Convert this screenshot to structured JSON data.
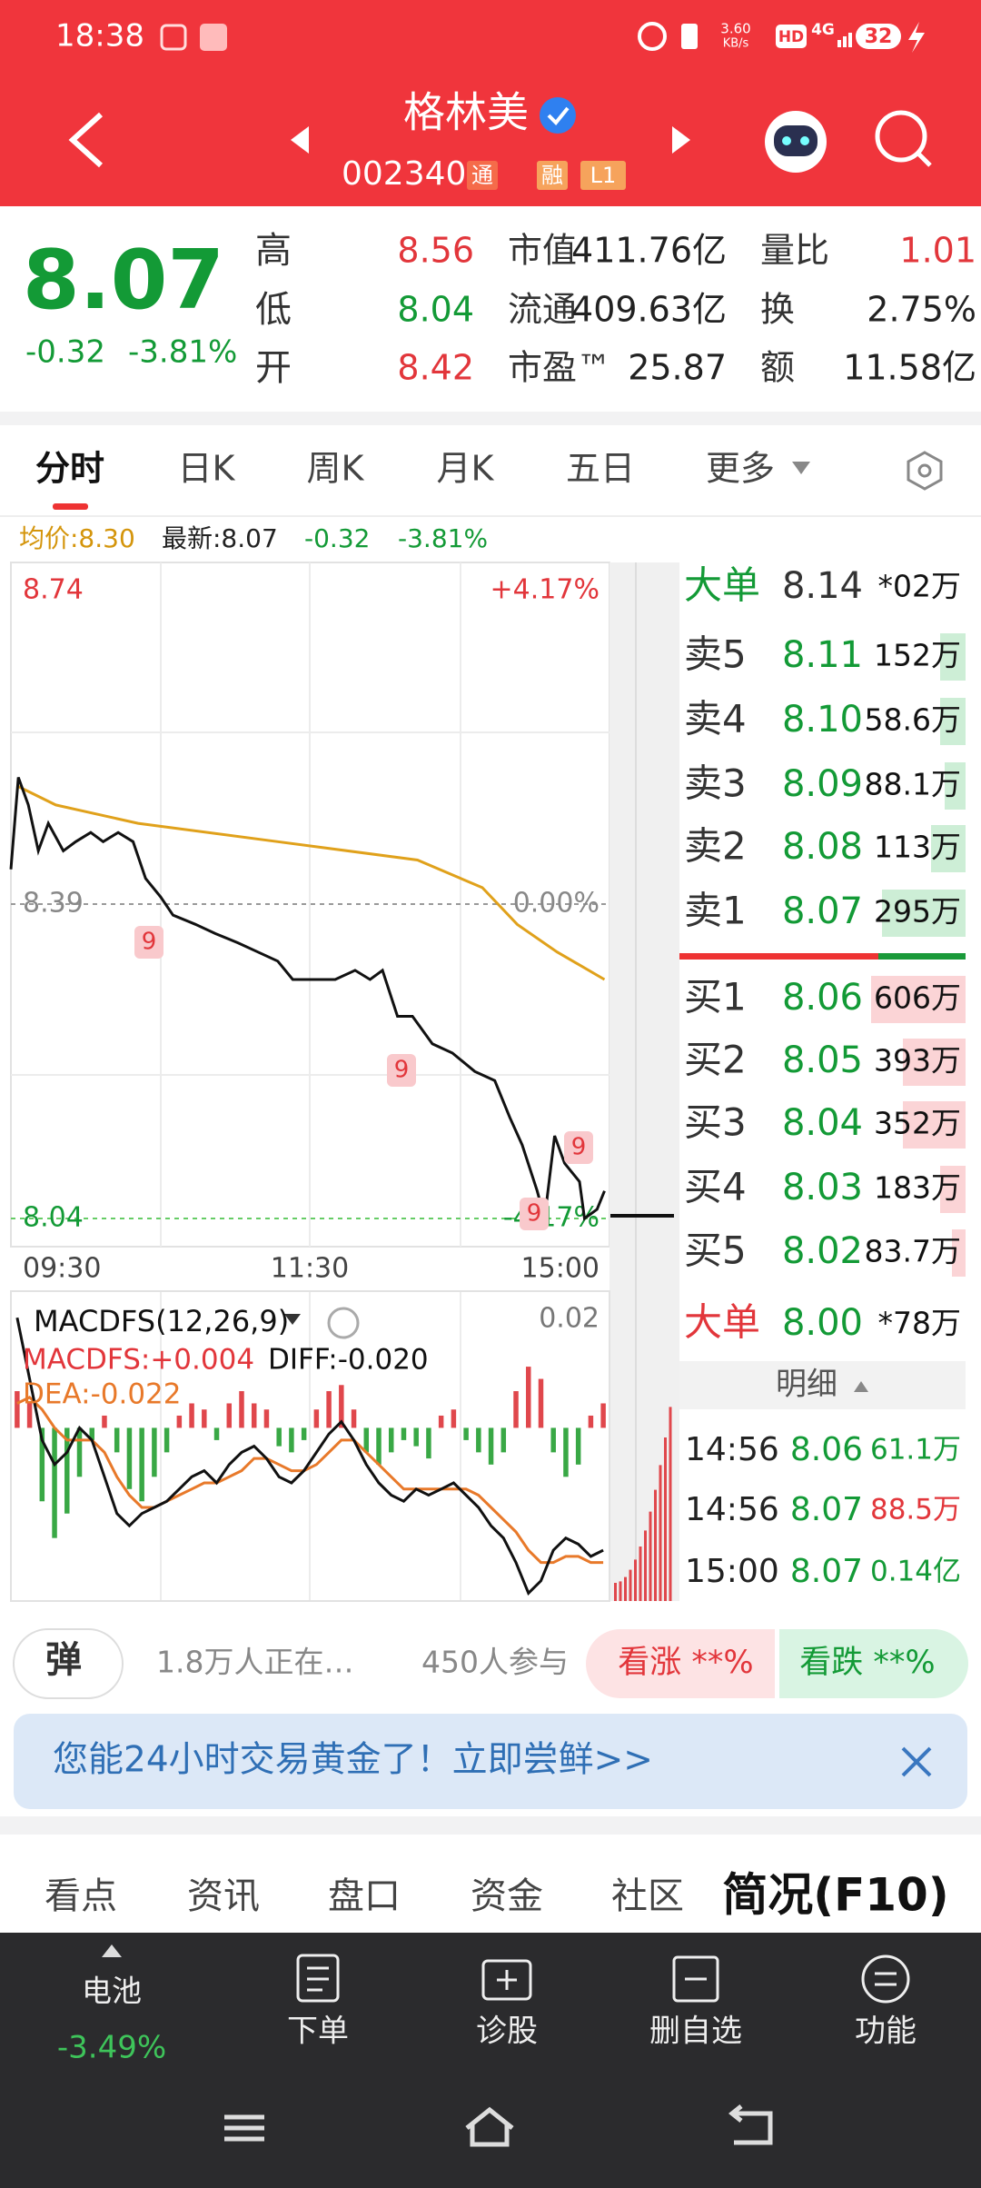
{
  "status": {
    "time": "18:38",
    "speed_value": "3.60",
    "speed_unit": "KB/s",
    "hd": "HD",
    "network": "4G",
    "battery": "32"
  },
  "header": {
    "title": "格林美",
    "code": "002340",
    "badges": [
      "通",
      "融",
      "L1"
    ]
  },
  "quote": {
    "price": "8.07",
    "change": "-0.32",
    "pct": "-3.81%",
    "stats": [
      {
        "label": "高",
        "value": "8.56"
      },
      {
        "label": "低",
        "value": "8.04"
      },
      {
        "label": "开",
        "value": "8.42"
      }
    ],
    "stats2": [
      {
        "label": "市值",
        "value": "411.76亿"
      },
      {
        "label": "流通",
        "value": "409.63亿"
      },
      {
        "label": "市盈™",
        "value": "25.87"
      }
    ],
    "stats3": [
      {
        "label": "量比",
        "value": "1.01"
      },
      {
        "label": "换",
        "value": "2.75%"
      },
      {
        "label": "额",
        "value": "11.58亿"
      }
    ]
  },
  "tabs": [
    "分时",
    "日K",
    "周K",
    "月K",
    "五日",
    "更多"
  ],
  "info": {
    "avg": "均价:8.30",
    "last": "最新:8.07",
    "change": "-0.32",
    "pct": "-3.81%"
  },
  "intraday": {
    "y_labels": [
      "8.74",
      "8.39",
      "8.04"
    ],
    "pct_labels": [
      "+4.17%",
      "0.00%",
      "-4.17%"
    ],
    "time_labels": [
      "09:30",
      "11:30",
      "15:00"
    ],
    "ylim": [
      8.04,
      8.74
    ],
    "xlim": [
      0,
      240
    ],
    "price": {
      "minutes": [
        0,
        3,
        7,
        11,
        15,
        21,
        26,
        32,
        37,
        43,
        49,
        54,
        60,
        65,
        74,
        82,
        91,
        99,
        107,
        113,
        121,
        130,
        138,
        144,
        149,
        155,
        161,
        169,
        177,
        186,
        194,
        200,
        205,
        211,
        214,
        218,
        222,
        228,
        230,
        235,
        238
      ],
      "values": [
        8.42,
        8.52,
        8.49,
        8.44,
        8.47,
        8.44,
        8.45,
        8.46,
        8.45,
        8.46,
        8.45,
        8.41,
        8.39,
        8.37,
        8.36,
        8.35,
        8.34,
        8.33,
        8.32,
        8.3,
        8.3,
        8.3,
        8.31,
        8.3,
        8.31,
        8.26,
        8.26,
        8.23,
        8.22,
        8.2,
        8.19,
        8.15,
        8.12,
        8.07,
        8.04,
        8.13,
        8.1,
        8.08,
        8.04,
        8.05,
        8.07
      ]
    },
    "avg": {
      "minutes": [
        3,
        18,
        51,
        107,
        163,
        189,
        203,
        219,
        238
      ],
      "values": [
        8.51,
        8.49,
        8.47,
        8.45,
        8.43,
        8.4,
        8.36,
        8.33,
        8.3
      ]
    },
    "markers": [
      "9",
      "9",
      "9",
      "9"
    ]
  },
  "macd": {
    "title": "MACDFS(12,26,9)",
    "macdfs": "MACDFS:+0.004",
    "diff_label": "DIFF:-0.020",
    "dea_label": "DEA:-0.022",
    "scale_label": "0.02",
    "ylim": [
      -0.028,
      0.021
    ],
    "hist": [
      0.006,
      0.004,
      -0.012,
      -0.018,
      -0.014,
      -0.008,
      -0.002,
      0.002,
      -0.004,
      -0.01,
      -0.012,
      -0.008,
      -0.004,
      0.002,
      0.004,
      0.003,
      -0.002,
      0.004,
      0.006,
      0.004,
      0.003,
      -0.003,
      -0.004,
      -0.002,
      0.003,
      0.006,
      0.007,
      0.003,
      -0.004,
      -0.006,
      -0.004,
      -0.002,
      -0.003,
      -0.005,
      0.002,
      0.003,
      -0.002,
      -0.004,
      -0.006,
      -0.004,
      0.006,
      0.01,
      0.008,
      -0.004,
      -0.008,
      -0.006,
      0.002,
      0.004
    ],
    "diff": [
      0.018,
      0.008,
      -0.002,
      -0.006,
      -0.004,
      0.0,
      -0.002,
      -0.008,
      -0.014,
      -0.016,
      -0.014,
      -0.013,
      -0.012,
      -0.01,
      -0.008,
      -0.007,
      -0.009,
      -0.006,
      -0.004,
      -0.003,
      -0.005,
      -0.008,
      -0.009,
      -0.007,
      -0.004,
      -0.001,
      0.001,
      -0.002,
      -0.006,
      -0.009,
      -0.011,
      -0.012,
      -0.01,
      -0.011,
      -0.01,
      -0.009,
      -0.011,
      -0.013,
      -0.016,
      -0.018,
      -0.022,
      -0.027,
      -0.025,
      -0.02,
      -0.018,
      -0.019,
      -0.021,
      -0.02
    ],
    "dea": [
      0.004,
      0.005,
      0.003,
      0.0,
      -0.002,
      -0.002,
      -0.002,
      -0.004,
      -0.008,
      -0.011,
      -0.013,
      -0.013,
      -0.012,
      -0.011,
      -0.01,
      -0.009,
      -0.009,
      -0.008,
      -0.007,
      -0.005,
      -0.005,
      -0.006,
      -0.007,
      -0.007,
      -0.006,
      -0.004,
      -0.002,
      -0.002,
      -0.004,
      -0.006,
      -0.008,
      -0.01,
      -0.01,
      -0.01,
      -0.01,
      -0.01,
      -0.01,
      -0.011,
      -0.013,
      -0.015,
      -0.017,
      -0.02,
      -0.022,
      -0.022,
      -0.021,
      -0.021,
      -0.022,
      -0.022
    ]
  },
  "orderbook": {
    "big_sell": {
      "label": "大单",
      "price": "8.14",
      "volume": "*02万"
    },
    "asks": [
      {
        "label": "卖5",
        "price": "8.11",
        "volume": "152万"
      },
      {
        "label": "卖4",
        "price": "8.10",
        "volume": "58.6万"
      },
      {
        "label": "卖3",
        "price": "8.09",
        "volume": "88.1万"
      },
      {
        "label": "卖2",
        "price": "8.08",
        "volume": "113万"
      },
      {
        "label": "卖1",
        "price": "8.07",
        "volume": "295万"
      }
    ],
    "bids": [
      {
        "label": "买1",
        "price": "8.06",
        "volume": "606万"
      },
      {
        "label": "买2",
        "price": "8.05",
        "volume": "393万"
      },
      {
        "label": "买3",
        "price": "8.04",
        "volume": "352万"
      },
      {
        "label": "买4",
        "price": "8.03",
        "volume": "183万"
      },
      {
        "label": "买5",
        "price": "8.02",
        "volume": "83.7万"
      }
    ],
    "big_buy": {
      "label": "大单",
      "price": "8.00",
      "volume": "*78万"
    },
    "detail_title": "明细",
    "trades": [
      {
        "time": "14:56",
        "price": "8.06",
        "volume": "61.1万"
      },
      {
        "time": "14:56",
        "price": "8.07",
        "volume": "88.5万"
      },
      {
        "time": "15:00",
        "price": "8.07",
        "volume": "0.14亿"
      }
    ]
  },
  "social": {
    "button": "弹",
    "watching": "1.8万人正在…",
    "participants": "450人参与",
    "up": "看涨 **%",
    "down": "看跌 **%"
  },
  "banner": "您能24小时交易黄金了！立即尝鲜>>",
  "bottom_tabs": [
    "看点",
    "资讯",
    "盘口",
    "资金",
    "社区",
    "简况(F10)"
  ],
  "toolbar": {
    "battery_label": "电池",
    "battery_pct": "-3.49%",
    "items": [
      "下单",
      "诊股",
      "删自选",
      "功能"
    ]
  }
}
